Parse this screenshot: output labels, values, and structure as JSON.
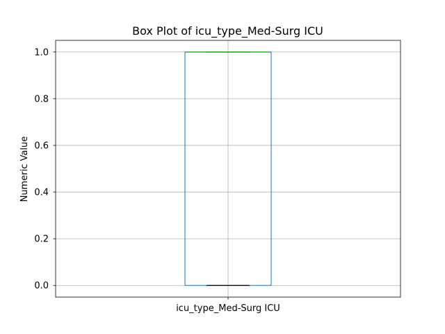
{
  "chart_data": {
    "type": "box",
    "title": "Box Plot of icu_type_Med-Surg ICU",
    "xlabel": "",
    "ylabel": "Numeric Value",
    "categories": [
      "icu_type_Med-Surg ICU"
    ],
    "boxes": [
      {
        "category": "icu_type_Med-Surg ICU",
        "min": 0.0,
        "q1": 0.0,
        "median": 1.0,
        "q3": 1.0,
        "max": 1.0
      }
    ],
    "ylim": [
      -0.05,
      1.05
    ],
    "yticks": [
      0.0,
      0.2,
      0.4,
      0.6,
      0.8,
      1.0
    ],
    "ytick_labels": [
      "0.0",
      "0.2",
      "0.4",
      "0.6",
      "0.8",
      "1.0"
    ],
    "grid": true,
    "colors": {
      "box": "#1f77b4",
      "median": "#2ca02c",
      "whisker": "#000000",
      "grid": "#b0b0b0",
      "frame": "#000000"
    }
  }
}
